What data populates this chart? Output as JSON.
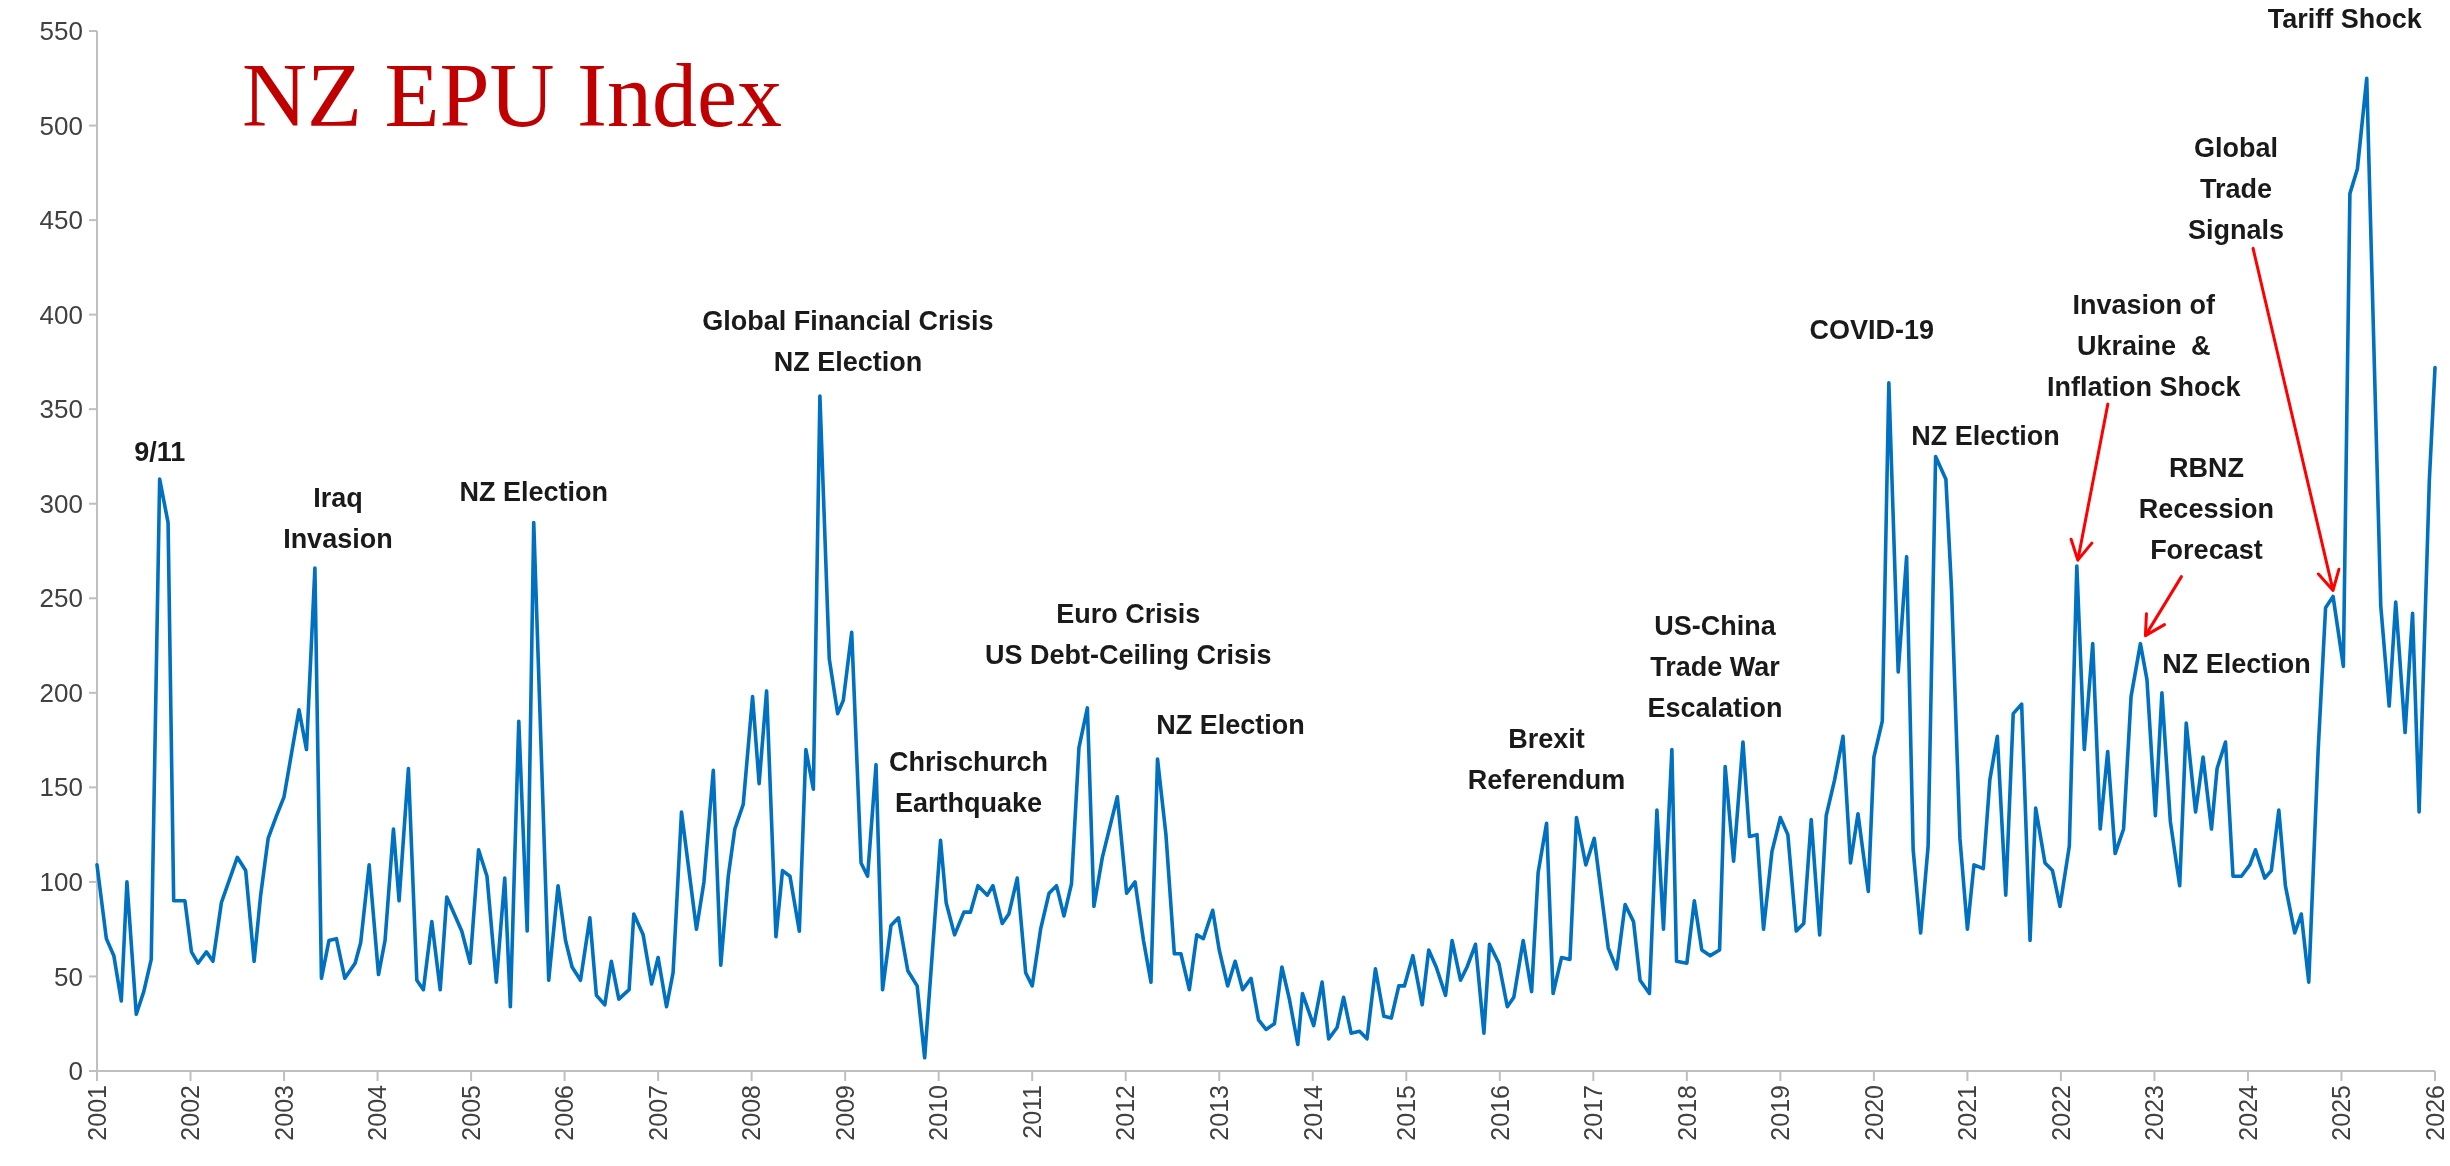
{
  "chart_data": {
    "type": "line",
    "title": "NZ EPU Index",
    "color": "#0070c0",
    "x": [
      2001.0,
      2001.1,
      2001.18,
      2001.26,
      2001.32,
      2001.42,
      2001.5,
      2001.58,
      2001.67,
      2001.76,
      2001.82,
      2001.94,
      2002.01,
      2002.08,
      2002.17,
      2002.24,
      2002.33,
      2002.5,
      2002.59,
      2002.68,
      2002.75,
      2002.83,
      2002.92,
      2003.0,
      2003.16,
      2003.24,
      2003.33,
      2003.4,
      2003.48,
      2003.56,
      2003.65,
      2003.76,
      2003.82,
      2003.91,
      2004.01,
      2004.08,
      2004.17,
      2004.23,
      2004.33,
      2004.42,
      2004.49,
      2004.58,
      2004.67,
      2004.74,
      2004.9,
      2004.99,
      2005.08,
      2005.17,
      2005.27,
      2005.36,
      2005.42,
      2005.51,
      2005.6,
      2005.67,
      2005.83,
      2005.93,
      2006.01,
      2006.08,
      2006.17,
      2006.27,
      2006.34,
      2006.43,
      2006.5,
      2006.58,
      2006.69,
      2006.74,
      2006.84,
      2006.93,
      2007.0,
      2007.09,
      2007.16,
      2007.25,
      2007.41,
      2007.49,
      2007.59,
      2007.67,
      2007.75,
      2007.82,
      2007.91,
      2008.01,
      2008.08,
      2008.16,
      2008.26,
      2008.33,
      2008.41,
      2008.51,
      2008.58,
      2008.66,
      2008.73,
      2008.83,
      2008.92,
      2008.98,
      2009.07,
      2009.17,
      2009.24,
      2009.33,
      2009.4,
      2009.49,
      2009.57,
      2009.67,
      2009.77,
      2009.85,
      2010.02,
      2010.08,
      2010.17,
      2010.27,
      2010.34,
      2010.42,
      2010.52,
      2010.58,
      2010.68,
      2010.75,
      2010.84,
      2010.93,
      2011.0,
      2011.09,
      2011.18,
      2011.26,
      2011.34,
      2011.42,
      2011.5,
      2011.59,
      2011.66,
      2011.75,
      2011.91,
      2012.01,
      2012.1,
      2012.19,
      2012.27,
      2012.34,
      2012.43,
      2012.52,
      2012.59,
      2012.68,
      2012.76,
      2012.83,
      2012.93,
      2013.0,
      2013.09,
      2013.17,
      2013.25,
      2013.34,
      2013.42,
      2013.5,
      2013.59,
      2013.67,
      2013.75,
      2013.84,
      2013.89,
      2014.01,
      2014.1,
      2014.17,
      2014.26,
      2014.33,
      2014.41,
      2014.5,
      2014.58,
      2014.67,
      2014.76,
      2014.84,
      2014.92,
      2014.98,
      2015.07,
      2015.17,
      2015.24,
      2015.32,
      2015.42,
      2015.49,
      2015.58,
      2015.65,
      2015.74,
      2015.83,
      2015.89,
      2015.99,
      2016.08,
      2016.15,
      2016.25,
      2016.34,
      2016.41,
      2016.5,
      2016.57,
      2016.66,
      2016.75,
      2016.82,
      2016.92,
      2017.01,
      2017.16,
      2017.25,
      2017.34,
      2017.43,
      2017.5,
      2017.6,
      2017.68,
      2017.75,
      2017.84,
      2017.89,
      2018.0,
      2018.08,
      2018.16,
      2018.25,
      2018.35,
      2018.41,
      2018.5,
      2018.6,
      2018.67,
      2018.75,
      2018.82,
      2018.91,
      2019.0,
      2019.08,
      2019.17,
      2019.25,
      2019.33,
      2019.42,
      2019.49,
      2019.58,
      2019.67,
      2019.75,
      2019.83,
      2019.94,
      2020.0,
      2020.09,
      2020.16,
      2020.26,
      2020.35,
      2020.42,
      2020.5,
      2020.58,
      2020.66,
      2020.77,
      2020.83,
      2020.92,
      2021.0,
      2021.07,
      2021.17,
      2021.24,
      2021.32,
      2021.41,
      2021.49,
      2021.58,
      2021.67,
      2021.73,
      2021.83,
      2021.91,
      2021.99,
      2022.09,
      2022.17,
      2022.25,
      2022.34,
      2022.42,
      2022.5,
      2022.58,
      2022.67,
      2022.75,
      2022.85,
      2022.92,
      2023.01,
      2023.08,
      2023.17,
      2023.27,
      2023.34,
      2023.44,
      2023.52,
      2023.61,
      2023.67,
      2023.76,
      2023.84,
      2023.93,
      2024.02,
      2024.08,
      2024.18,
      2024.25,
      2024.33,
      2024.4,
      2024.5,
      2024.57,
      2024.65,
      2024.75,
      2024.83,
      2024.91,
      2025.02,
      2025.09,
      2025.17,
      2025.27,
      2025.42,
      2025.51,
      2025.58,
      2025.68,
      2025.76,
      2025.83,
      2025.94,
      2026.0
    ],
    "values": [
      109,
      70,
      61,
      37,
      100,
      30,
      42,
      59,
      313,
      290,
      90,
      90,
      63,
      57,
      63,
      58,
      89,
      113,
      106,
      58,
      93,
      123,
      135,
      145,
      191,
      170,
      266,
      49,
      69,
      70,
      49,
      57,
      68,
      109,
      51,
      69,
      128,
      90,
      160,
      48,
      43,
      79,
      43,
      92,
      74,
      57,
      117,
      103,
      47,
      102,
      34,
      185,
      74,
      290,
      48,
      98,
      69,
      55,
      48,
      81,
      40,
      35,
      58,
      38,
      43,
      83,
      72,
      46,
      60,
      34,
      52,
      137,
      75,
      100,
      159,
      56,
      103,
      128,
      141,
      198,
      152,
      201,
      71,
      106,
      103,
      74,
      170,
      149,
      357,
      218,
      189,
      196,
      232,
      110,
      103,
      162,
      43,
      77,
      81,
      53,
      45,
      7,
      122,
      89,
      72,
      84,
      84,
      98,
      93,
      98,
      78,
      83,
      102,
      52,
      45,
      75,
      94,
      98,
      82,
      99,
      171,
      192,
      87,
      113,
      145,
      94,
      100,
      69,
      47,
      165,
      125,
      62,
      62,
      43,
      72,
      70,
      85,
      64,
      45,
      58,
      43,
      49,
      27,
      22,
      25,
      55,
      38,
      14,
      41,
      24,
      47,
      17,
      23,
      39,
      20,
      21,
      17,
      54,
      29,
      28,
      45,
      45,
      61,
      35,
      64,
      55,
      40,
      69,
      48,
      55,
      67,
      20,
      67,
      57,
      34,
      39,
      69,
      42,
      105,
      131,
      41,
      60,
      59,
      134,
      109,
      123,
      65,
      54,
      88,
      79,
      48,
      41,
      138,
      75,
      170,
      58,
      57,
      90,
      64,
      61,
      64,
      161,
      111,
      174,
      124,
      125,
      75,
      116,
      134,
      125,
      74,
      78,
      133,
      72,
      135,
      154,
      177,
      110,
      136,
      95,
      166,
      185,
      364,
      211,
      272,
      117,
      73,
      119,
      325,
      313,
      255,
      123,
      75,
      109,
      107,
      154,
      177,
      93,
      189,
      194,
      69,
      139,
      110,
      106,
      87,
      119,
      267,
      170,
      226,
      128,
      169,
      115,
      128,
      198,
      226,
      207,
      135,
      200,
      132,
      98,
      184,
      137,
      166,
      128,
      160,
      174,
      103,
      103,
      109,
      117,
      102,
      106,
      138,
      98,
      73,
      83,
      47,
      169,
      245,
      251,
      214,
      464,
      477,
      525,
      246,
      193,
      248,
      179,
      242,
      137,
      313,
      372
    ],
    "xlim": [
      2001,
      2026
    ],
    "xticks": [
      2001,
      2002,
      2003,
      2004,
      2005,
      2006,
      2007,
      2008,
      2009,
      2010,
      2011,
      2012,
      2013,
      2014,
      2015,
      2016,
      2017,
      2018,
      2019,
      2020,
      2021,
      2022,
      2023,
      2024,
      2025,
      2026
    ],
    "ylim": [
      0,
      550
    ],
    "yticks": [
      0,
      50,
      100,
      150,
      200,
      250,
      300,
      350,
      400,
      450,
      500,
      550
    ],
    "annotations": [
      {
        "text": "9/11",
        "x": 2001.67,
        "y": 313
      },
      {
        "text": "Iraq\nInvasion",
        "x": 2003.33,
        "y": 266
      },
      {
        "text": "NZ Election",
        "x": 2005.67,
        "y": 290
      },
      {
        "text": "Global Financial Crisis\nNZ Election",
        "x": 2008.73,
        "y": 357
      },
      {
        "text": "Chrischurch\nEarthquake",
        "x": 2010.02,
        "y": 122
      },
      {
        "text": "Euro Crisis\nUS Debt-Ceiling Crisis",
        "x": 2011.59,
        "y": 192
      },
      {
        "text": "NZ Election",
        "x": 2012.34,
        "y": 165
      },
      {
        "text": "Brexit\nReferendum",
        "x": 2016.5,
        "y": 131
      },
      {
        "text": "US-China\nTrade War\nEscalation",
        "x": 2018.6,
        "y": 174
      },
      {
        "text": "COVID-19",
        "x": 2020.16,
        "y": 364
      },
      {
        "text": "NZ Election",
        "x": 2020.66,
        "y": 325
      },
      {
        "text": "Invasion of\nUkraine  &\nInflation Shock",
        "x": 2022.17,
        "y": 267
      },
      {
        "text": "RBNZ\nRecession\nForecast",
        "x": 2022.85,
        "y": 226
      },
      {
        "text": "NZ Election",
        "x": 2023.76,
        "y": 174
      },
      {
        "text": "Global\nTrade\nSignals",
        "x": 2024.91,
        "y": 251
      },
      {
        "text": "Tariff Shock",
        "x": 2025.27,
        "y": 525
      }
    ]
  }
}
